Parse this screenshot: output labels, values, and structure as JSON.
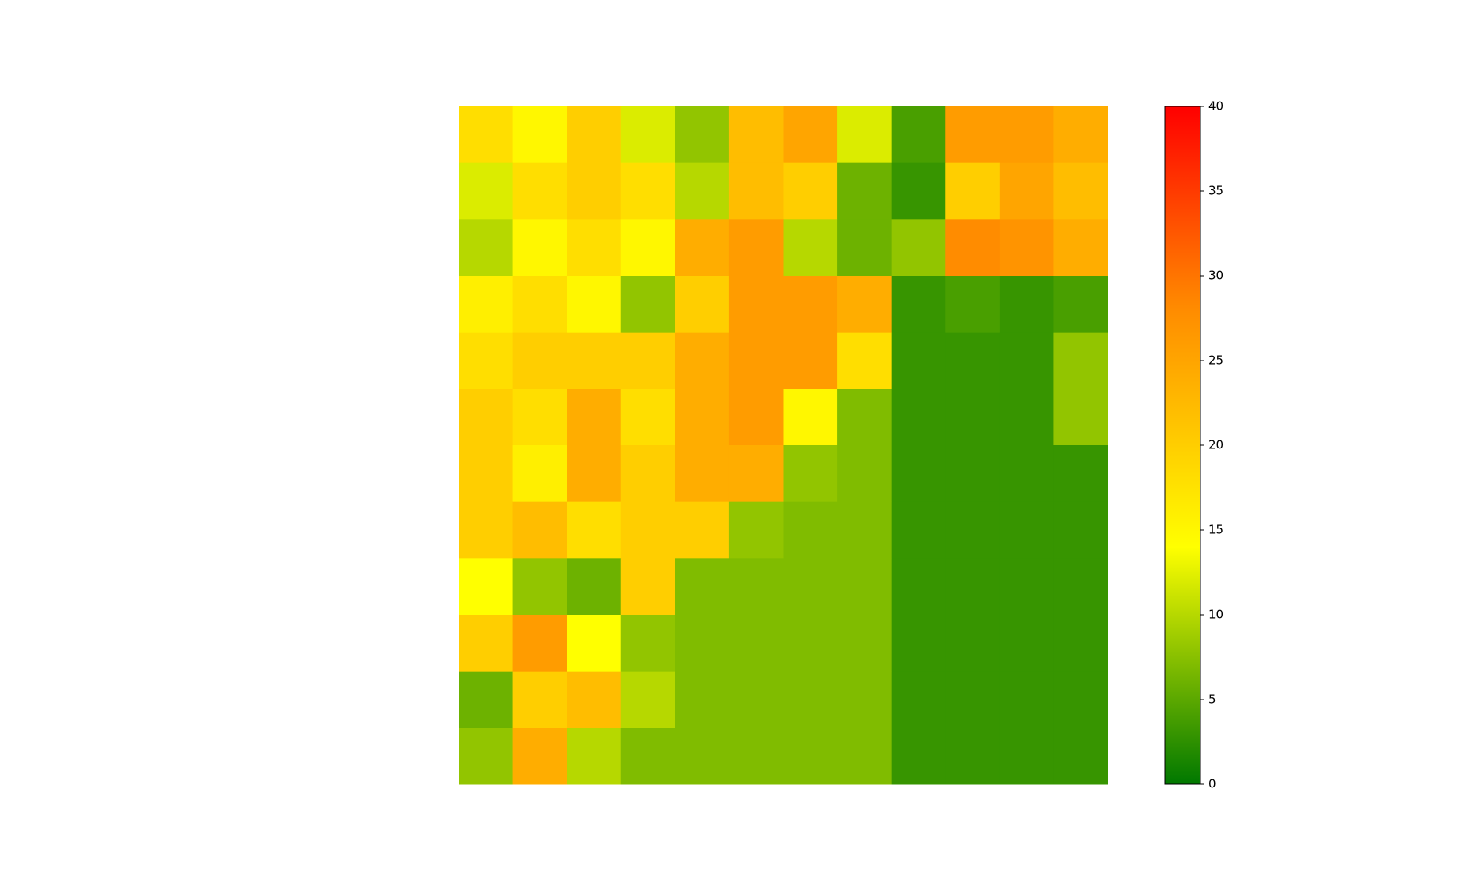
{
  "chart_data": {
    "type": "heatmap",
    "values": [
      [
        18,
        15,
        20,
        12,
        8,
        22,
        25,
        12,
        4,
        26,
        26,
        24
      ],
      [
        12,
        18,
        20,
        18,
        10,
        22,
        20,
        6,
        3,
        20,
        25,
        22
      ],
      [
        10,
        15,
        18,
        15,
        24,
        26,
        10,
        6,
        8,
        28,
        27,
        24
      ],
      [
        16,
        18,
        15,
        8,
        20,
        26,
        26,
        24,
        3,
        4,
        3,
        4
      ],
      [
        18,
        20,
        20,
        20,
        24,
        26,
        26,
        18,
        3,
        3,
        3,
        8
      ],
      [
        20,
        18,
        24,
        18,
        24,
        26,
        15,
        7,
        3,
        3,
        3,
        8
      ],
      [
        20,
        16,
        24,
        20,
        24,
        24,
        8,
        7,
        3,
        3,
        3,
        3
      ],
      [
        20,
        22,
        18,
        20,
        20,
        8,
        7,
        7,
        3,
        3,
        3,
        3
      ],
      [
        14,
        8,
        6,
        20,
        7,
        7,
        7,
        7,
        3,
        3,
        3,
        3
      ],
      [
        20,
        26,
        14,
        8,
        7,
        7,
        7,
        7,
        3,
        3,
        3,
        3
      ],
      [
        6,
        20,
        22,
        10,
        7,
        7,
        7,
        7,
        3,
        3,
        3,
        3
      ],
      [
        8,
        24,
        10,
        7,
        7,
        7,
        7,
        7,
        3,
        3,
        3,
        3
      ]
    ],
    "colormap": [
      {
        "value": 0,
        "color": "#007800"
      },
      {
        "value": 14,
        "color": "#ffff00"
      },
      {
        "value": 28,
        "color": "#ff8c00"
      },
      {
        "value": 40,
        "color": "#ff0000"
      }
    ],
    "clim": [
      0,
      40
    ],
    "cticks": [
      0,
      5,
      10,
      15,
      20,
      25,
      30,
      35,
      40
    ]
  }
}
